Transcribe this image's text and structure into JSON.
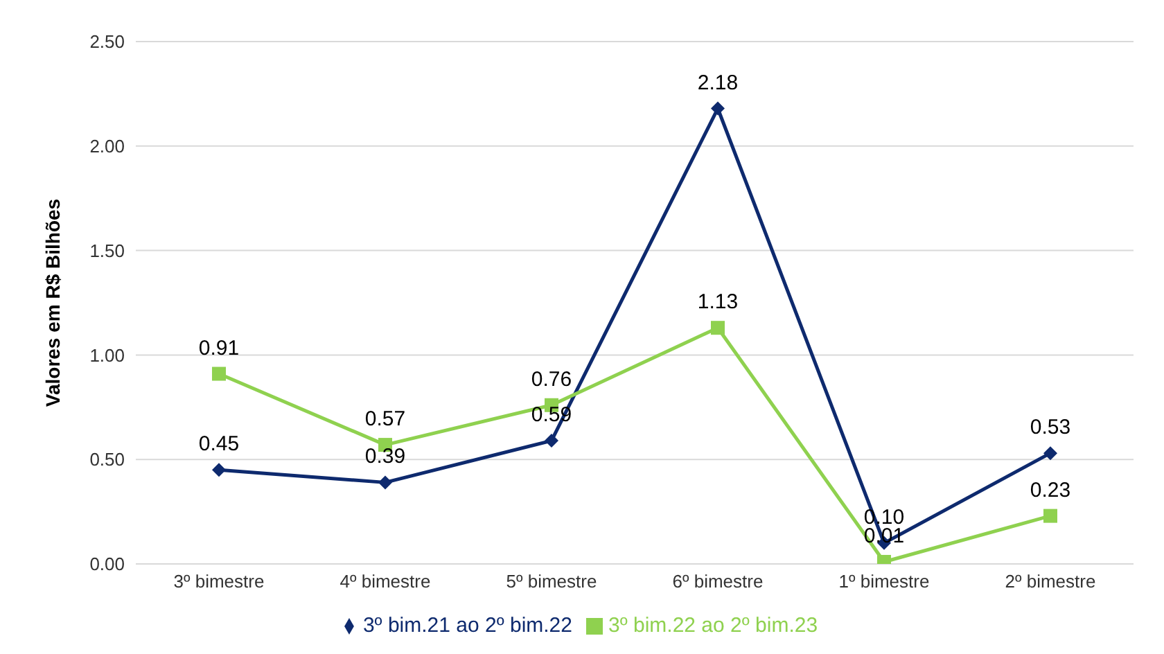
{
  "chart_data": {
    "type": "line",
    "ylabel": "Valores em R$ Bilhões",
    "categories": [
      "3º bimestre",
      "4º bimestre",
      "5º bimestre",
      "6º bimestre",
      "1º bimestre",
      "2º bimestre"
    ],
    "series": [
      {
        "name": "3º bim.21 ao 2º bim.22",
        "color": "#0e2a6e",
        "marker": "diamond",
        "values": [
          0.45,
          0.39,
          0.59,
          2.18,
          0.1,
          0.53
        ],
        "value_labels": [
          "0.45",
          "0.39",
          "0.59",
          "2.18",
          "0.10",
          "0.53"
        ]
      },
      {
        "name": "3º bim.22 ao 2º bim.23",
        "color": "#8fd14f",
        "marker": "square",
        "values": [
          0.91,
          0.57,
          0.76,
          1.13,
          0.01,
          0.23
        ],
        "value_labels": [
          "0.91",
          "0.57",
          "0.76",
          "1.13",
          "0.01",
          "0.23"
        ]
      }
    ],
    "ylim": [
      0,
      2.5
    ],
    "yticks": [
      {
        "value": 0,
        "label": "0.00"
      },
      {
        "value": 0.5,
        "label": "0.50"
      },
      {
        "value": 1,
        "label": "1.00"
      },
      {
        "value": 1.5,
        "label": "1.50"
      },
      {
        "value": 2,
        "label": "2.00"
      },
      {
        "value": 2.5,
        "label": "2.50"
      }
    ],
    "grid": "y",
    "legend": "bottom",
    "line_style": "solid"
  }
}
